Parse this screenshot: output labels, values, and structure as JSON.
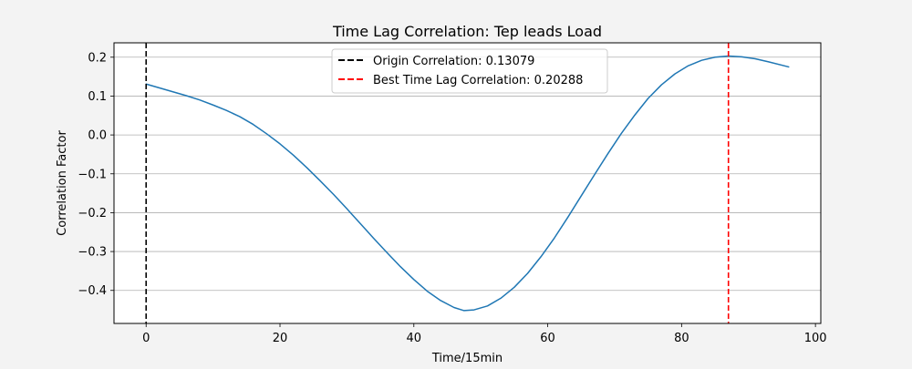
{
  "chart_data": {
    "type": "line",
    "title": "Time Lag Correlation: Tep leads Load",
    "xlabel": "Time/15min",
    "ylabel": "Correlation Factor",
    "xlim": [
      -4.8,
      100.8
    ],
    "ylim": [
      -0.485,
      0.237
    ],
    "xticks": [
      0,
      20,
      40,
      60,
      80,
      100
    ],
    "yticks": [
      -0.4,
      -0.3,
      -0.2,
      -0.1,
      0.0,
      0.1,
      0.2
    ],
    "xtick_labels": [
      "0",
      "20",
      "40",
      "60",
      "80",
      "100"
    ],
    "ytick_labels": [
      "−0.4",
      "−0.3",
      "−0.2",
      "−0.1",
      "0.0",
      "0.1",
      "0.2"
    ],
    "grid": "horizontal",
    "legend_position": "top-center",
    "series": [
      {
        "color": "#1f77b4",
        "points": [
          [
            0,
            0.131
          ],
          [
            2,
            0.121
          ],
          [
            4,
            0.111
          ],
          [
            6,
            0.101
          ],
          [
            8,
            0.09
          ],
          [
            10,
            0.077
          ],
          [
            12,
            0.063
          ],
          [
            14,
            0.047
          ],
          [
            16,
            0.027
          ],
          [
            18,
            0.003
          ],
          [
            20,
            -0.023
          ],
          [
            22,
            -0.052
          ],
          [
            24,
            -0.084
          ],
          [
            26,
            -0.118
          ],
          [
            28,
            -0.153
          ],
          [
            30,
            -0.19
          ],
          [
            32,
            -0.228
          ],
          [
            34,
            -0.266
          ],
          [
            36,
            -0.303
          ],
          [
            38,
            -0.339
          ],
          [
            40,
            -0.372
          ],
          [
            42,
            -0.402
          ],
          [
            44,
            -0.426
          ],
          [
            46,
            -0.444
          ],
          [
            47.5,
            -0.452
          ],
          [
            49,
            -0.45
          ],
          [
            51,
            -0.44
          ],
          [
            53,
            -0.42
          ],
          [
            55,
            -0.392
          ],
          [
            57,
            -0.356
          ],
          [
            59,
            -0.313
          ],
          [
            61,
            -0.265
          ],
          [
            63,
            -0.212
          ],
          [
            65,
            -0.157
          ],
          [
            67,
            -0.102
          ],
          [
            69,
            -0.048
          ],
          [
            71,
            0.004
          ],
          [
            73,
            0.051
          ],
          [
            75,
            0.094
          ],
          [
            77,
            0.129
          ],
          [
            79,
            0.157
          ],
          [
            81,
            0.178
          ],
          [
            83,
            0.192
          ],
          [
            85,
            0.2
          ],
          [
            87,
            0.203
          ],
          [
            89,
            0.201
          ],
          [
            91,
            0.196
          ],
          [
            93,
            0.188
          ],
          [
            96,
            0.175
          ]
        ]
      }
    ],
    "reference_lines": [
      {
        "x": 0,
        "label": "Origin Correlation: 0.13079",
        "color": "#000000"
      },
      {
        "x": 87,
        "label": "Best Time Lag Correlation: 0.20288",
        "color": "#ff0000"
      }
    ]
  }
}
